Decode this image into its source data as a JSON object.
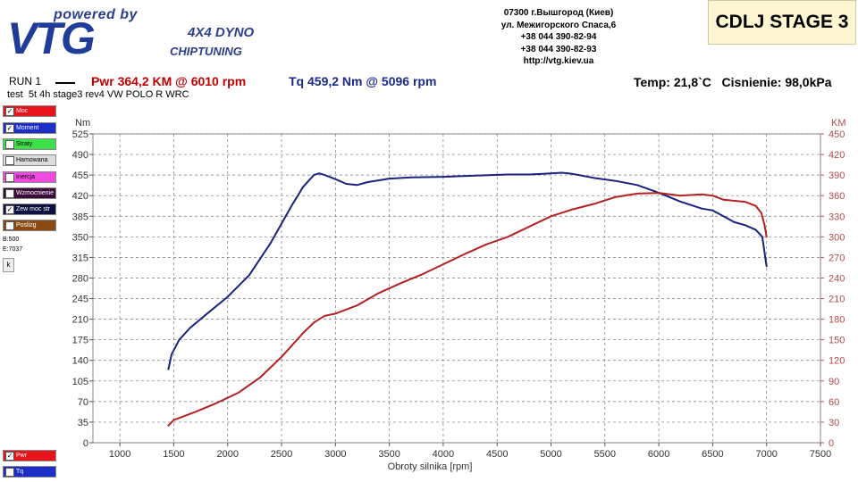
{
  "header": {
    "logo_powered": "powered by",
    "logo_brand": "VTG",
    "logo_line1": "4X4 DYNO",
    "logo_line2": "CHIPTUNING",
    "address": [
      "07300 г.Вышгород (Киев)",
      "ул. Межигорского Спаса,6",
      "+38 044 390-82-94",
      "+38 044 390-82-93",
      "http://vtg.kiev.ua"
    ],
    "stage_label": "CDLJ STAGE 3"
  },
  "run": {
    "label": "RUN 1",
    "pwr": "Pwr  364,2 KM @ 6010 rpm",
    "tq": "Tq 459,2 Nm @ 5096 rpm",
    "conditions": "Temp: 21,8`C   Cisnienie: 98,0kPa",
    "test_name": "test  5t 4h stage3 rev4 VW POLO R WRC"
  },
  "legend": {
    "items": [
      {
        "label": "Moc",
        "color": "#e8141b",
        "checked": true
      },
      {
        "label": "Moment",
        "color": "#1d2dc8",
        "checked": true
      },
      {
        "label": "Straty",
        "color": "#3ee04a",
        "checked": false
      },
      {
        "label": "Hamowana",
        "color": "#dcdcdc",
        "checked": false
      },
      {
        "label": "Inercja",
        "color": "#f04be0",
        "checked": false
      },
      {
        "label": "Wzmocnienie",
        "color": "#3a0a3a",
        "checked": false
      },
      {
        "label": "Zew moc str",
        "color": "#101040",
        "checked": true
      },
      {
        "label": "Poslizg",
        "color": "#8a4a12",
        "checked": false
      }
    ],
    "bottom_items": [
      {
        "label": "Pwr",
        "color": "#e8141b",
        "checked": true
      },
      {
        "label": "Tq",
        "color": "#1d2dc8",
        "checked": false
      }
    ],
    "b_value": "B:500",
    "e_value": "E:7037",
    "k_button": "k"
  },
  "chart_data": {
    "type": "line",
    "xlabel": "Obroty silnika [rpm]",
    "ylabel_left": "Nm",
    "ylabel_right": "KM",
    "xlim": [
      750,
      7500
    ],
    "ylim_left": [
      0,
      525
    ],
    "ylim_right": [
      0,
      450
    ],
    "x_ticks": [
      1000,
      1500,
      2000,
      2500,
      3000,
      3500,
      4000,
      4500,
      5000,
      5500,
      6000,
      6500,
      7000,
      7500
    ],
    "y_ticks_left": [
      0,
      35,
      70,
      105,
      140,
      175,
      210,
      245,
      280,
      315,
      350,
      385,
      420,
      455,
      490,
      525
    ],
    "y_ticks_right": [
      0,
      30,
      60,
      90,
      120,
      150,
      180,
      210,
      240,
      270,
      300,
      330,
      360,
      390,
      420,
      450
    ],
    "grid": true,
    "series": [
      {
        "name": "Moment",
        "color": "#1a237e",
        "axis": "left",
        "x": [
          1450,
          1480,
          1550,
          1650,
          1800,
          2000,
          2200,
          2400,
          2600,
          2700,
          2800,
          2850,
          2900,
          3000,
          3100,
          3200,
          3300,
          3500,
          3700,
          4000,
          4300,
          4600,
          4800,
          5000,
          5100,
          5200,
          5400,
          5600,
          5800,
          6000,
          6200,
          6400,
          6500,
          6600,
          6700,
          6800,
          6900,
          6960,
          7000
        ],
        "y": [
          125,
          150,
          175,
          195,
          218,
          248,
          285,
          340,
          405,
          435,
          455,
          458,
          455,
          448,
          440,
          438,
          443,
          449,
          451,
          452,
          454,
          456,
          456,
          458,
          459,
          457,
          450,
          445,
          438,
          425,
          410,
          398,
          395,
          385,
          375,
          370,
          362,
          350,
          300
        ]
      },
      {
        "name": "Moc",
        "color": "#b22222",
        "axis": "right",
        "x": [
          1450,
          1500,
          1700,
          1900,
          2100,
          2300,
          2500,
          2700,
          2800,
          2900,
          3000,
          3200,
          3400,
          3600,
          3800,
          4000,
          4200,
          4400,
          4600,
          4800,
          5000,
          5200,
          5400,
          5600,
          5800,
          6000,
          6200,
          6400,
          6500,
          6600,
          6800,
          6900,
          6950,
          6980,
          7000
        ],
        "y": [
          25,
          33,
          45,
          58,
          73,
          95,
          125,
          160,
          175,
          185,
          188,
          200,
          218,
          232,
          245,
          260,
          275,
          289,
          300,
          315,
          330,
          340,
          348,
          358,
          363,
          364,
          360,
          362,
          360,
          354,
          351,
          345,
          335,
          318,
          300
        ]
      }
    ]
  }
}
